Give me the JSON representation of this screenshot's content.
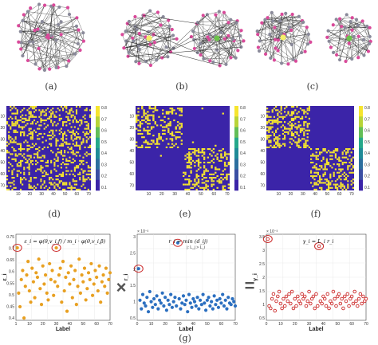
{
  "captions": [
    "(a)",
    "(b)",
    "(c)",
    "(d)",
    "(e)",
    "(f)",
    "(g)"
  ],
  "operators": {
    "times": "×",
    "equals": "="
  },
  "colorbar_ticks": [
    "0.8",
    "0.7",
    "0.6",
    "0.5",
    "0.4",
    "0.3",
    "0.2",
    "0.1"
  ],
  "matrix_x_ticks": [
    "10",
    "20",
    "30",
    "40",
    "50",
    "60",
    "70"
  ],
  "matrix_y_ticks": [
    "10",
    "20",
    "30",
    "40",
    "50",
    "60",
    "70"
  ],
  "colors": {
    "matrix_bg": "#3b24a8",
    "matrix_on": "#f6e52e",
    "node_pink": "#d94a9a",
    "node_gray": "#8a8a9a",
    "hub_yellow": "#f5ef6a",
    "hub_green": "#6cc34a",
    "orange": "#e8a021",
    "blue": "#2b6fc0",
    "red": "#cc2a2a"
  },
  "panels_g": [
    {
      "ylabel": "ε_i",
      "xlabel": "Label",
      "xticks": [
        "1",
        "10",
        "20",
        "30",
        "40",
        "50",
        "60",
        "70"
      ],
      "yticks": [
        "0.75",
        "0.7",
        "0.65",
        "0.6",
        "0.55",
        "0.5",
        "0.45",
        "0.4"
      ],
      "equation": "ε_i = φ(θ,v_i,f) / m_i · φ(θ,v_i,β)"
    },
    {
      "ylabel": "r_i",
      "xlabel": "Label",
      "exponent": "× 10⁻³",
      "xticks": [
        "0",
        "10",
        "20",
        "30",
        "40",
        "50",
        "60",
        "70"
      ],
      "yticks": [
        "3",
        "2.5",
        "2",
        "1.5",
        "1",
        "0.5"
      ],
      "equation": "r_i = min (d_ij)",
      "equation_sub": "j: L_j > L_i"
    },
    {
      "ylabel": "γ_i",
      "xlabel": "Label",
      "exponent": "× 10⁻³",
      "xticks": [
        "0",
        "10",
        "20",
        "30",
        "40",
        "50",
        "60",
        "70"
      ],
      "yticks": [
        "3.5",
        "3",
        "2.5",
        "2",
        "1.5",
        "1",
        "0.5"
      ],
      "equation": "γ_i = L_i r_i"
    }
  ],
  "chart_data": [
    {
      "type": "scatter",
      "xlabel": "Label",
      "ylabel": "ε_i",
      "xlim": [
        0,
        70
      ],
      "ylim": [
        0.4,
        0.78
      ],
      "x": [
        1,
        2,
        3,
        4,
        5,
        6,
        7,
        8,
        9,
        10,
        11,
        12,
        13,
        14,
        15,
        16,
        17,
        18,
        19,
        20,
        21,
        22,
        23,
        24,
        25,
        26,
        27,
        28,
        29,
        30,
        31,
        32,
        33,
        34,
        35,
        36,
        37,
        38,
        39,
        40,
        41,
        42,
        43,
        44,
        45,
        46,
        47,
        48,
        49,
        50,
        51,
        52,
        53,
        54,
        55,
        56,
        57,
        58,
        59,
        60,
        61,
        62,
        63,
        64,
        65,
        66,
        67,
        68,
        69,
        70
      ],
      "y": [
        0.72,
        0.52,
        0.46,
        0.58,
        0.62,
        0.41,
        0.55,
        0.6,
        0.66,
        0.53,
        0.48,
        0.63,
        0.57,
        0.5,
        0.61,
        0.59,
        0.67,
        0.54,
        0.47,
        0.64,
        0.56,
        0.6,
        0.52,
        0.49,
        0.65,
        0.58,
        0.62,
        0.51,
        0.57,
        0.72,
        0.55,
        0.6,
        0.63,
        0.48,
        0.66,
        0.53,
        0.59,
        0.44,
        0.61,
        0.56,
        0.64,
        0.5,
        0.58,
        0.62,
        0.47,
        0.55,
        0.67,
        0.52,
        0.6,
        0.57,
        0.63,
        0.49,
        0.54,
        0.61,
        0.58,
        0.65,
        0.51,
        0.56,
        0.62,
        0.59,
        0.53,
        0.64,
        0.48,
        0.57,
        0.6,
        0.55,
        0.63,
        0.52,
        0.58,
        0.61
      ]
    },
    {
      "type": "scatter",
      "xlabel": "Label",
      "ylabel": "r_i",
      "xlim": [
        0,
        70
      ],
      "ylim": [
        0.3,
        3.3
      ],
      "x": [
        1,
        2,
        3,
        4,
        5,
        6,
        7,
        8,
        9,
        10,
        11,
        12,
        13,
        14,
        15,
        16,
        17,
        18,
        19,
        20,
        21,
        22,
        23,
        24,
        25,
        26,
        27,
        28,
        29,
        30,
        31,
        32,
        33,
        34,
        35,
        36,
        37,
        38,
        39,
        40,
        41,
        42,
        43,
        44,
        45,
        46,
        47,
        48,
        49,
        50,
        51,
        52,
        53,
        54,
        55,
        56,
        57,
        58,
        59,
        60,
        61,
        62,
        63,
        64,
        65,
        66,
        67,
        68,
        69,
        70
      ],
      "y": [
        2.1,
        1.0,
        0.7,
        1.2,
        0.9,
        0.8,
        1.1,
        0.6,
        1.3,
        0.95,
        0.75,
        1.05,
        0.85,
        1.15,
        0.7,
        1.0,
        0.9,
        1.25,
        0.8,
        1.1,
        0.65,
        1.0,
        0.85,
        1.2,
        0.75,
        0.95,
        1.1,
        0.8,
        3.0,
        1.05,
        0.7,
        0.9,
        1.15,
        0.85,
        1.0,
        0.6,
        1.2,
        0.9,
        0.75,
        1.05,
        0.95,
        0.8,
        1.1,
        0.7,
        1.0,
        0.85,
        1.2,
        0.9,
        0.65,
        1.0,
        1.1,
        0.8,
        0.95,
        0.7,
        1.15,
        0.85,
        1.0,
        0.75,
        1.05,
        0.9,
        1.2,
        0.8,
        1.0,
        0.7,
        1.1,
        0.9,
        0.85,
        1.05,
        0.95,
        0.8
      ]
    },
    {
      "type": "scatter",
      "xlabel": "Label",
      "ylabel": "γ_i",
      "xlim": [
        0,
        70
      ],
      "ylim": [
        0,
        3.6
      ],
      "x": [
        1,
        2,
        3,
        4,
        5,
        6,
        7,
        8,
        9,
        10,
        11,
        12,
        13,
        14,
        15,
        16,
        17,
        18,
        19,
        20,
        21,
        22,
        23,
        24,
        25,
        26,
        27,
        28,
        29,
        30,
        31,
        32,
        33,
        34,
        35,
        36,
        37,
        38,
        39,
        40,
        41,
        42,
        43,
        44,
        45,
        46,
        47,
        48,
        49,
        50,
        51,
        52,
        53,
        54,
        55,
        56,
        57,
        58,
        59,
        60,
        61,
        62,
        63,
        64,
        65,
        66,
        67,
        68,
        69,
        70
      ],
      "y": [
        3.4,
        0.6,
        0.5,
        0.9,
        1.1,
        0.4,
        0.8,
        1.0,
        1.2,
        0.7,
        0.5,
        0.9,
        0.6,
        1.0,
        0.8,
        1.1,
        0.7,
        1.2,
        0.5,
        0.9,
        0.6,
        1.0,
        0.8,
        0.7,
        1.1,
        0.9,
        1.0,
        0.6,
        0.8,
        1.2,
        0.7,
        0.9,
        1.0,
        0.5,
        1.1,
        0.6,
        3.1,
        0.8,
        0.7,
        1.0,
        0.9,
        0.6,
        1.1,
        0.5,
        0.8,
        0.7,
        1.2,
        0.9,
        0.6,
        1.0,
        1.1,
        0.7,
        0.9,
        0.5,
        1.0,
        0.8,
        1.1,
        0.6,
        0.9,
        1.0,
        0.7,
        1.2,
        0.8,
        0.6,
        0.9,
        1.1,
        0.7,
        1.0,
        0.8,
        0.9
      ]
    }
  ]
}
